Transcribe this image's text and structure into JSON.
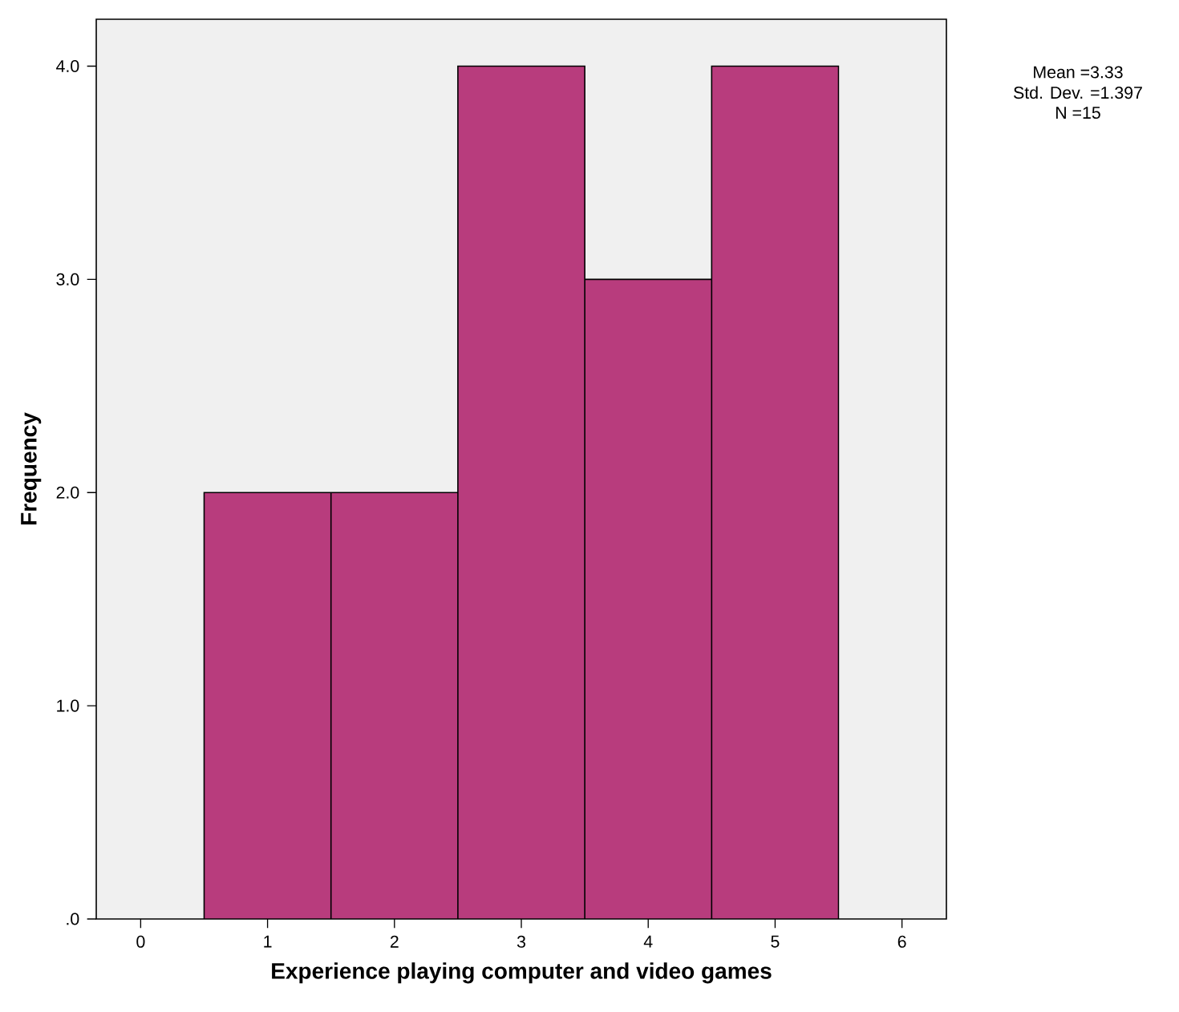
{
  "chart_data": {
    "type": "histogram",
    "xlabel": "Experience playing computer and video games",
    "ylabel": "Frequency",
    "bins": [
      0.5,
      1.5,
      2.5,
      3.5,
      4.5,
      5.5
    ],
    "values": [
      2,
      2,
      4,
      3,
      4
    ],
    "color": "#b83c7d",
    "xlim": [
      -0.35,
      6.35
    ],
    "ylim": [
      0,
      4.22
    ],
    "xticks": [
      0,
      1,
      2,
      3,
      4,
      5,
      6
    ],
    "yticks": [
      {
        "value": 0,
        "label": ".0"
      },
      {
        "value": 1,
        "label": "1.0"
      },
      {
        "value": 2,
        "label": "2.0"
      },
      {
        "value": 3,
        "label": "3.0"
      },
      {
        "value": 4,
        "label": "4.0"
      }
    ],
    "annotations": [
      "Mean =3.33",
      "Std. Dev. =1.397",
      "N =15"
    ],
    "grid": false
  }
}
